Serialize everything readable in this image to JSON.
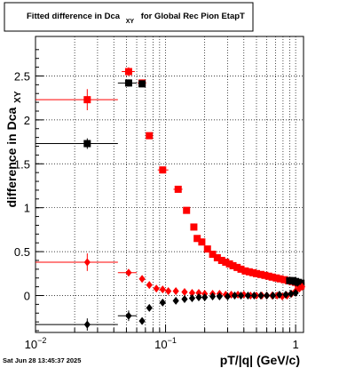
{
  "chart_data": {
    "type": "scatter",
    "title": "Fitted difference in Dca",
    "title_subscript": "XY",
    "title_suffix": "for Global Rec Pion EtapT",
    "xlabel": "pT/|q| (GeV/c)",
    "ylabel": "difference in Dca",
    "ylabel_subscript": "XY",
    "x_scale": "log",
    "xlim": [
      0.01,
      1.15
    ],
    "ylim": [
      -0.42,
      2.95
    ],
    "grid": true,
    "x_ticks": [
      {
        "value": 0.01,
        "base": "10",
        "exp": "−2"
      },
      {
        "value": 0.1,
        "base": "10",
        "exp": "−1"
      },
      {
        "value": 1,
        "base": "1",
        "exp": ""
      }
    ],
    "y_ticks": [
      {
        "value": 0,
        "label": "0"
      },
      {
        "value": 0.5,
        "label": "0.5"
      },
      {
        "value": 1,
        "label": "1"
      },
      {
        "value": 1.5,
        "label": "1.5"
      },
      {
        "value": 2,
        "label": "2"
      },
      {
        "value": 2.5,
        "label": "2.5"
      }
    ],
    "timestamp": "Sat Jun 28 13:45:37 2025",
    "series": [
      {
        "color": "#ff0000",
        "marker": "square",
        "points": [
          {
            "x": 0.025,
            "y": 2.23,
            "xlo": 0.01,
            "xhi": 0.043,
            "yerr": 0.12
          },
          {
            "x": 0.052,
            "y": 2.55,
            "xlo": 0.046,
            "xhi": 0.058,
            "yerr": 0.05
          },
          {
            "x": 0.066,
            "y": 2.42,
            "xlo": 0.061,
            "xhi": 0.071,
            "yerr": 0.04
          },
          {
            "x": 0.075,
            "y": 1.82
          },
          {
            "x": 0.095,
            "y": 1.43,
            "xlo": 0.087,
            "xhi": 0.105,
            "yerr": 0.02
          },
          {
            "x": 0.125,
            "y": 1.21,
            "xlo": 0.115,
            "xhi": 0.135,
            "yerr": 0.02
          },
          {
            "x": 0.145,
            "y": 0.97,
            "xlo": 0.14,
            "xhi": 0.15,
            "yerr": 0.02
          },
          {
            "x": 0.165,
            "y": 0.78
          },
          {
            "x": 0.175,
            "y": 0.65
          },
          {
            "x": 0.19,
            "y": 0.61
          },
          {
            "x": 0.21,
            "y": 0.53
          },
          {
            "x": 0.23,
            "y": 0.47
          },
          {
            "x": 0.25,
            "y": 0.43
          },
          {
            "x": 0.27,
            "y": 0.4
          },
          {
            "x": 0.29,
            "y": 0.38
          },
          {
            "x": 0.31,
            "y": 0.36
          },
          {
            "x": 0.33,
            "y": 0.34
          },
          {
            "x": 0.355,
            "y": 0.32
          },
          {
            "x": 0.38,
            "y": 0.3
          },
          {
            "x": 0.41,
            "y": 0.28
          },
          {
            "x": 0.44,
            "y": 0.27
          },
          {
            "x": 0.47,
            "y": 0.26
          },
          {
            "x": 0.5,
            "y": 0.25
          },
          {
            "x": 0.54,
            "y": 0.24
          },
          {
            "x": 0.58,
            "y": 0.23
          },
          {
            "x": 0.62,
            "y": 0.22
          },
          {
            "x": 0.66,
            "y": 0.21
          },
          {
            "x": 0.71,
            "y": 0.2
          },
          {
            "x": 0.76,
            "y": 0.19
          },
          {
            "x": 0.82,
            "y": 0.18
          },
          {
            "x": 0.88,
            "y": 0.17
          },
          {
            "x": 0.94,
            "y": 0.16
          },
          {
            "x": 1.0,
            "y": 0.15
          },
          {
            "x": 1.05,
            "y": 0.13
          },
          {
            "x": 1.1,
            "y": 0.11
          }
        ]
      },
      {
        "color": "#000000",
        "marker": "square",
        "points": [
          {
            "x": 0.025,
            "y": 1.73,
            "xlo": 0.01,
            "xhi": 0.043,
            "yerr": 0.06
          },
          {
            "x": 0.052,
            "y": 2.42,
            "xlo": 0.043,
            "xhi": 0.06,
            "yerr": 0.04
          },
          {
            "x": 0.066,
            "y": 2.41
          },
          {
            "x": 0.9,
            "y": 0.17
          },
          {
            "x": 0.95,
            "y": 0.17
          },
          {
            "x": 1.0,
            "y": 0.16
          },
          {
            "x": 1.05,
            "y": 0.15
          },
          {
            "x": 1.1,
            "y": 0.14
          }
        ]
      },
      {
        "color": "#ff0000",
        "marker": "diamond",
        "points": [
          {
            "x": 0.025,
            "y": 0.38,
            "xlo": 0.01,
            "xhi": 0.043,
            "yerr": 0.1
          },
          {
            "x": 0.052,
            "y": 0.26,
            "xlo": 0.043,
            "xhi": 0.06,
            "yerr": 0.04
          },
          {
            "x": 0.066,
            "y": 0.19
          },
          {
            "x": 0.075,
            "y": 0.12
          },
          {
            "x": 0.085,
            "y": 0.08
          },
          {
            "x": 0.095,
            "y": 0.07
          },
          {
            "x": 0.105,
            "y": 0.05
          },
          {
            "x": 0.12,
            "y": 0.05
          },
          {
            "x": 0.14,
            "y": 0.04
          },
          {
            "x": 0.16,
            "y": 0.03
          },
          {
            "x": 0.18,
            "y": 0.03
          },
          {
            "x": 0.2,
            "y": 0.02
          },
          {
            "x": 0.23,
            "y": 0.02
          },
          {
            "x": 0.26,
            "y": 0.02
          },
          {
            "x": 0.29,
            "y": 0.01
          },
          {
            "x": 0.32,
            "y": 0.01
          },
          {
            "x": 0.36,
            "y": 0.01
          },
          {
            "x": 0.4,
            "y": 0.01
          },
          {
            "x": 0.45,
            "y": 0.0
          },
          {
            "x": 0.5,
            "y": 0.0
          },
          {
            "x": 0.55,
            "y": 0.0
          },
          {
            "x": 0.6,
            "y": 0.0
          },
          {
            "x": 0.66,
            "y": 0.0
          },
          {
            "x": 0.72,
            "y": 0.0
          },
          {
            "x": 0.79,
            "y": -0.01
          },
          {
            "x": 0.86,
            "y": 0.0
          },
          {
            "x": 0.93,
            "y": 0.02
          },
          {
            "x": 1.0,
            "y": 0.05
          },
          {
            "x": 1.07,
            "y": 0.08
          },
          {
            "x": 1.12,
            "y": 0.1
          }
        ]
      },
      {
        "color": "#000000",
        "marker": "diamond",
        "points": [
          {
            "x": 0.025,
            "y": -0.33,
            "xlo": 0.01,
            "xhi": 0.043,
            "yerr": 0.07
          },
          {
            "x": 0.052,
            "y": -0.23,
            "xlo": 0.043,
            "xhi": 0.06,
            "yerr": 0.06
          },
          {
            "x": 0.066,
            "y": -0.29
          },
          {
            "x": 0.075,
            "y": -0.14
          },
          {
            "x": 0.095,
            "y": -0.08
          },
          {
            "x": 0.12,
            "y": -0.06
          },
          {
            "x": 0.14,
            "y": -0.04
          },
          {
            "x": 0.16,
            "y": -0.03
          },
          {
            "x": 0.18,
            "y": -0.02
          },
          {
            "x": 0.2,
            "y": -0.02
          },
          {
            "x": 0.23,
            "y": -0.01
          },
          {
            "x": 0.26,
            "y": -0.01
          },
          {
            "x": 0.3,
            "y": -0.01
          },
          {
            "x": 0.34,
            "y": 0.0
          },
          {
            "x": 0.38,
            "y": 0.0
          },
          {
            "x": 0.43,
            "y": 0.0
          },
          {
            "x": 0.48,
            "y": 0.0
          },
          {
            "x": 0.54,
            "y": 0.0
          },
          {
            "x": 0.6,
            "y": 0.0
          },
          {
            "x": 0.67,
            "y": 0.0
          },
          {
            "x": 0.75,
            "y": 0.01
          },
          {
            "x": 0.84,
            "y": 0.01
          },
          {
            "x": 0.92,
            "y": 0.02
          },
          {
            "x": 1.0,
            "y": 0.03
          }
        ]
      }
    ]
  }
}
